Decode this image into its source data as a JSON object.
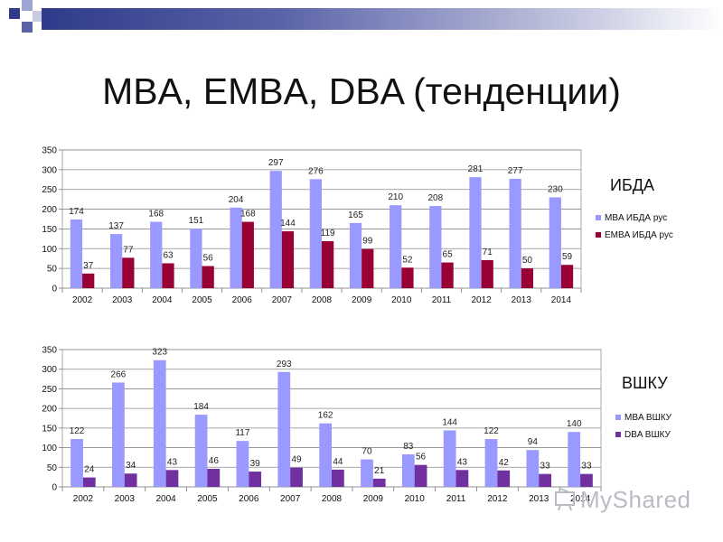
{
  "title": "MBA, EMBA, DBA (тенденции)",
  "labels": {
    "chart1_side": "ИБДА",
    "chart2_side": "ВШКУ"
  },
  "watermark": "MyShared",
  "colors": {
    "mba": "#9999ff",
    "emba": "#990033",
    "dba": "#7030a0",
    "title_bar": "#2f3a8a"
  },
  "chart_data": [
    {
      "type": "bar",
      "categories": [
        "2002",
        "2003",
        "2004",
        "2005",
        "2006",
        "2007",
        "2008",
        "2009",
        "2010",
        "2011",
        "2012",
        "2013",
        "2014"
      ],
      "ylim": [
        0,
        350
      ],
      "yticks": [
        0,
        50,
        100,
        150,
        200,
        250,
        300,
        350
      ],
      "series": [
        {
          "name": "MBA ИБДА рус",
          "color": "#9999ff",
          "values": [
            174,
            137,
            168,
            151,
            204,
            297,
            276,
            165,
            210,
            208,
            281,
            277,
            230
          ],
          "labels": [
            "174",
            "137",
            "168",
            "151",
            "204",
            "297",
            "276",
            "165",
            "210",
            "208",
            "281",
            "277",
            "230"
          ]
        },
        {
          "name": "EMBA ИБДА рус",
          "color": "#990033",
          "values": [
            37,
            77,
            63,
            56,
            168,
            144,
            119,
            99,
            52,
            65,
            71,
            50,
            59
          ],
          "labels": [
            "37",
            "77",
            "63",
            "56",
            "168",
            "144",
            "119",
            "99",
            "52",
            "65",
            "71",
            "50",
            "59"
          ]
        }
      ],
      "legend": "right"
    },
    {
      "type": "bar",
      "categories": [
        "2002",
        "2003",
        "2004",
        "2005",
        "2006",
        "2007",
        "2008",
        "2009",
        "2010",
        "2011",
        "2012",
        "2013",
        "2014"
      ],
      "ylim": [
        0,
        350
      ],
      "yticks": [
        0,
        50,
        100,
        150,
        200,
        250,
        300,
        350
      ],
      "series": [
        {
          "name": "MBA ВШКУ",
          "color": "#9999ff",
          "values": [
            122,
            266,
            323,
            184,
            117,
            293,
            162,
            70,
            83,
            144,
            122,
            94,
            140
          ],
          "labels": [
            "122",
            "266",
            "323",
            "184",
            "117",
            "293",
            "162",
            "70",
            "83",
            "144",
            "122",
            "94",
            "140"
          ]
        },
        {
          "name": "DBA ВШКУ",
          "color": "#7030a0",
          "values": [
            24,
            34,
            43,
            46,
            39,
            49,
            44,
            21,
            56,
            43,
            42,
            33,
            33
          ],
          "labels": [
            "24",
            "34",
            "43",
            "46",
            "39",
            "49",
            "44",
            "21",
            "56",
            "43",
            "42",
            "33",
            "33"
          ]
        }
      ],
      "legend": "right"
    }
  ]
}
